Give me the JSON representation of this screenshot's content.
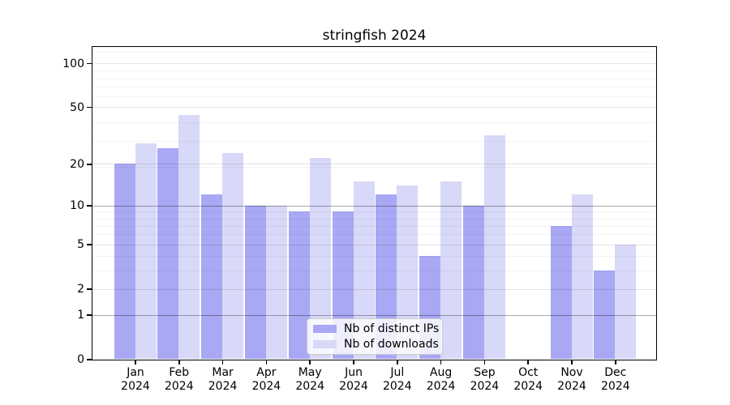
{
  "chart_data": {
    "type": "bar",
    "title": "stringfish 2024",
    "categories": [
      "Jan 2024",
      "Feb 2024",
      "Mar 2024",
      "Apr 2024",
      "May 2024",
      "Jun 2024",
      "Jul 2024",
      "Aug 2024",
      "Sep 2024",
      "Oct 2024",
      "Nov 2024",
      "Dec 2024"
    ],
    "series": [
      {
        "name": "Nb of distinct IPs",
        "color": "#a8a8f4",
        "values": [
          20,
          26,
          12,
          10,
          9,
          9,
          12,
          4,
          10,
          0,
          7,
          3
        ]
      },
      {
        "name": "Nb of downloads",
        "color": "#d8d8f8",
        "values": [
          28,
          44,
          24,
          10,
          22,
          15,
          14,
          15,
          32,
          0,
          12,
          5
        ]
      }
    ],
    "xlabel": "",
    "ylabel": "",
    "y_scale": "log1p",
    "ylim": [
      0,
      135
    ],
    "y_ticks": [
      0,
      1,
      2,
      5,
      10,
      20,
      50,
      100
    ],
    "y_minor_gridlines": [
      3,
      4,
      6,
      7,
      8,
      9,
      19,
      29,
      39,
      59,
      69,
      79,
      89,
      109,
      119,
      129
    ],
    "emphasized_gridlines": [
      1,
      10
    ],
    "grid": true,
    "legend_position": "lower center inside",
    "axis_color": "#000000",
    "background_color": "#ffffff"
  }
}
